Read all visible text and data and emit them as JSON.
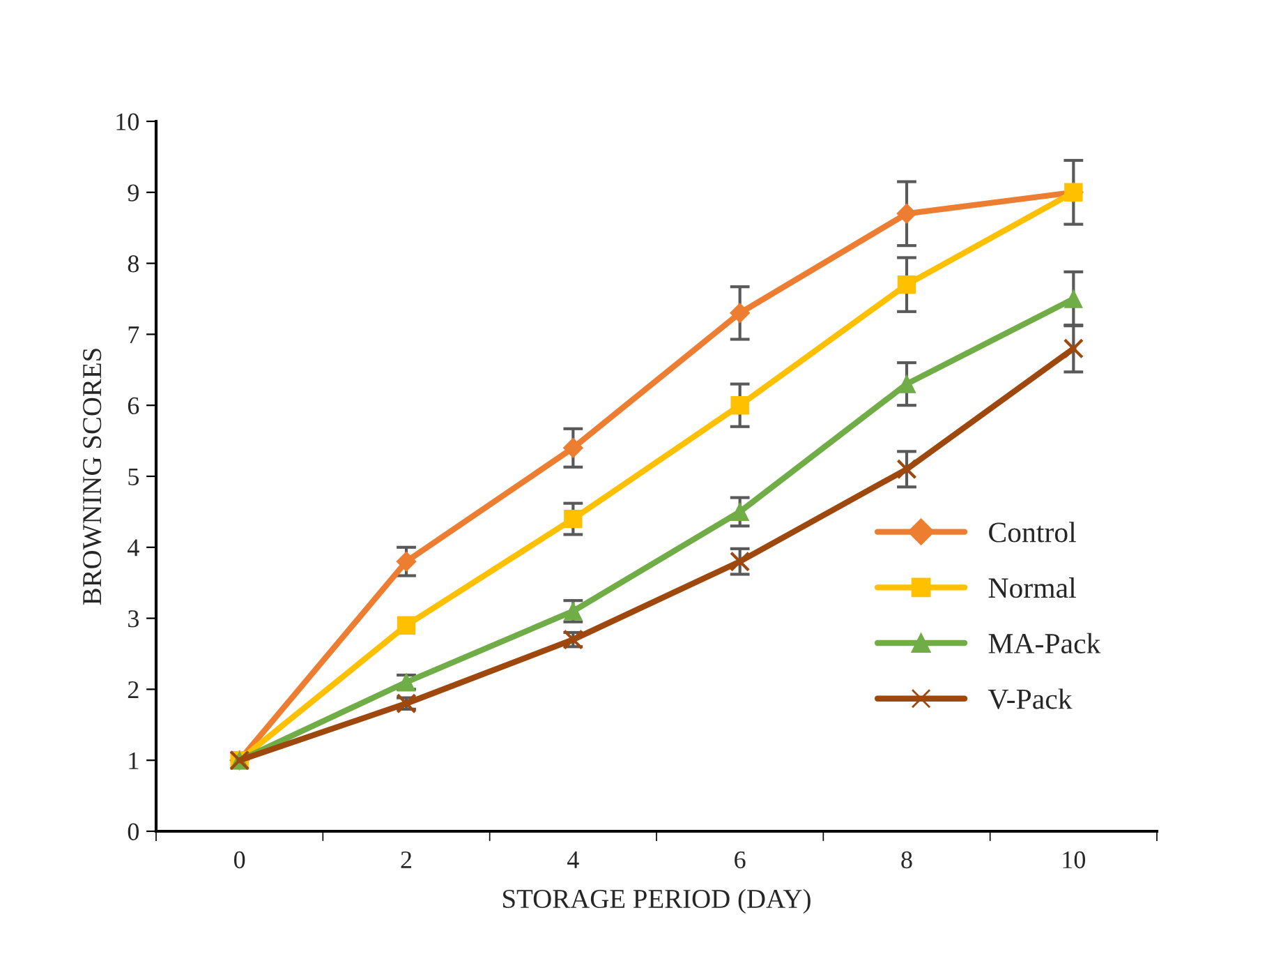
{
  "chart_data": {
    "type": "line",
    "xlabel": "STORAGE PERIOD (DAY)",
    "ylabel": "BROWNING SCORES",
    "categories": [
      "0",
      "2",
      "4",
      "6",
      "8",
      "10"
    ],
    "series": [
      {
        "name": "Control",
        "color": "#ed7d31",
        "marker": "diamond",
        "values": [
          1,
          3.8,
          5.4,
          7.3,
          8.7,
          9.0
        ],
        "errors": [
          null,
          0.2,
          0.27,
          0.37,
          0.45,
          null
        ]
      },
      {
        "name": "Normal",
        "color": "#ffc000",
        "marker": "square",
        "values": [
          1,
          2.9,
          4.4,
          6.0,
          7.7,
          9.0
        ],
        "errors": [
          null,
          null,
          0.22,
          0.3,
          0.38,
          0.45
        ]
      },
      {
        "name": "MA-Pack",
        "color": "#70ad47",
        "marker": "triangle",
        "values": [
          1,
          2.1,
          3.1,
          4.5,
          6.3,
          7.5
        ],
        "errors": [
          null,
          0.1,
          0.15,
          0.2,
          0.3,
          0.38
        ]
      },
      {
        "name": "V-Pack",
        "color": "#9e480e",
        "marker": "cross",
        "values": [
          1,
          1.8,
          2.7,
          3.8,
          5.1,
          6.8
        ],
        "errors": [
          null,
          0.08,
          0.1,
          0.18,
          0.25,
          0.33
        ]
      }
    ],
    "ylim": [
      0,
      10
    ],
    "yticks": [
      0,
      1,
      2,
      3,
      4,
      5,
      6,
      7,
      8,
      9,
      10
    ],
    "grid": false,
    "legend": "right",
    "line_style": "solid"
  }
}
